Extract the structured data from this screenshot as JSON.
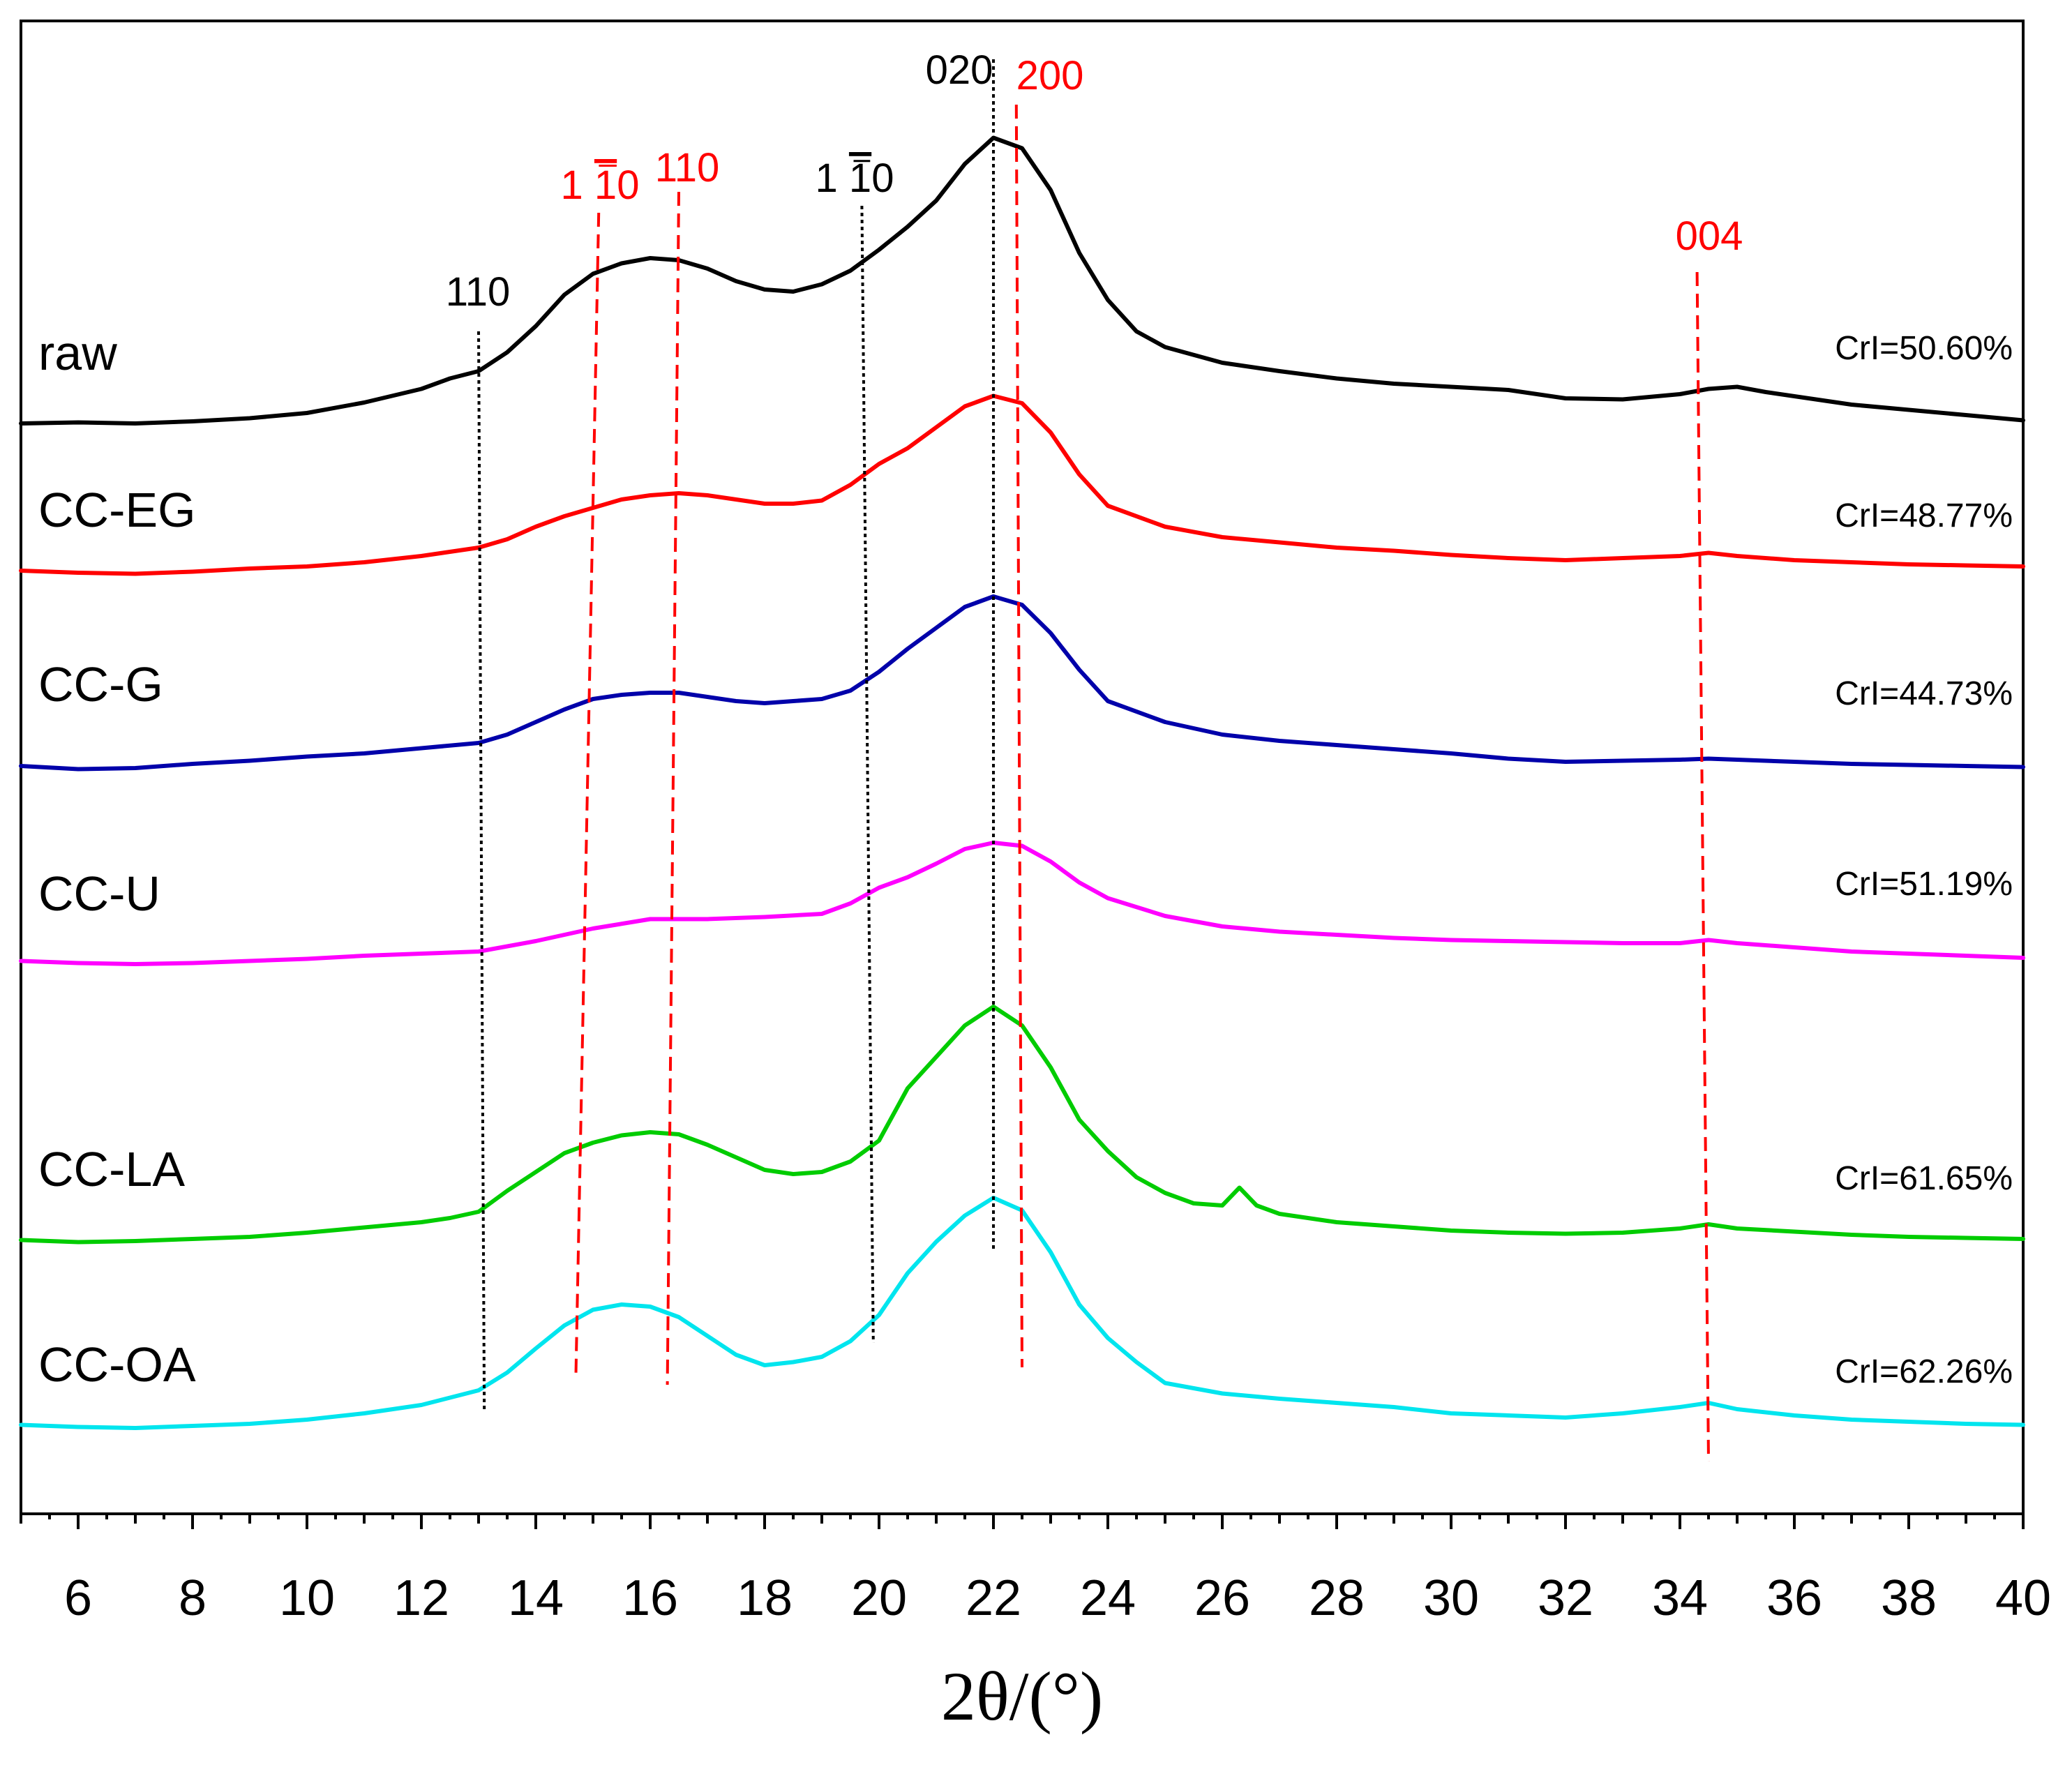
{
  "chart_data": {
    "type": "line",
    "title": "",
    "xlabel": "2θ/(°)",
    "ylabel": "",
    "xlim": [
      5,
      40
    ],
    "xticks": [
      6,
      8,
      10,
      12,
      14,
      16,
      18,
      20,
      22,
      24,
      26,
      28,
      30,
      32,
      34,
      36,
      38,
      40
    ],
    "y_axis_visible": false,
    "legend": "none",
    "series": [
      {
        "name": "raw",
        "color": "#000000",
        "cri": "CrI=50.60%",
        "points": [
          [
            5,
            12
          ],
          [
            6,
            13
          ],
          [
            7,
            12
          ],
          [
            8,
            14
          ],
          [
            9,
            17
          ],
          [
            10,
            22
          ],
          [
            11,
            32
          ],
          [
            12,
            45
          ],
          [
            12.5,
            55
          ],
          [
            13,
            62
          ],
          [
            13.5,
            80
          ],
          [
            14,
            105
          ],
          [
            14.5,
            135
          ],
          [
            15,
            155
          ],
          [
            15.5,
            165
          ],
          [
            16,
            170
          ],
          [
            16.5,
            168
          ],
          [
            17,
            160
          ],
          [
            17.5,
            148
          ],
          [
            18,
            140
          ],
          [
            18.5,
            138
          ],
          [
            19,
            145
          ],
          [
            19.5,
            158
          ],
          [
            20,
            178
          ],
          [
            20.5,
            200
          ],
          [
            21,
            225
          ],
          [
            21.5,
            260
          ],
          [
            22,
            285
          ],
          [
            22.5,
            275
          ],
          [
            23,
            235
          ],
          [
            23.5,
            175
          ],
          [
            24,
            130
          ],
          [
            24.5,
            100
          ],
          [
            25,
            85
          ],
          [
            26,
            70
          ],
          [
            27,
            62
          ],
          [
            28,
            55
          ],
          [
            29,
            50
          ],
          [
            30,
            47
          ],
          [
            31,
            44
          ],
          [
            32,
            36
          ],
          [
            33,
            35
          ],
          [
            34,
            40
          ],
          [
            34.5,
            45
          ],
          [
            35,
            47
          ],
          [
            35.5,
            42
          ],
          [
            36,
            38
          ],
          [
            37,
            30
          ],
          [
            38,
            25
          ],
          [
            39,
            20
          ],
          [
            40,
            15
          ]
        ]
      },
      {
        "name": "CC-EG",
        "color": "#ff0000",
        "cri": "CrI=48.77%",
        "points": [
          [
            5,
            8
          ],
          [
            6,
            6
          ],
          [
            7,
            5
          ],
          [
            8,
            7
          ],
          [
            9,
            10
          ],
          [
            10,
            12
          ],
          [
            11,
            16
          ],
          [
            12,
            22
          ],
          [
            13,
            30
          ],
          [
            13.5,
            38
          ],
          [
            14,
            50
          ],
          [
            14.5,
            60
          ],
          [
            15,
            68
          ],
          [
            15.5,
            76
          ],
          [
            16,
            80
          ],
          [
            16.5,
            82
          ],
          [
            17,
            80
          ],
          [
            17.5,
            76
          ],
          [
            18,
            72
          ],
          [
            18.5,
            72
          ],
          [
            19,
            75
          ],
          [
            19.5,
            90
          ],
          [
            20,
            110
          ],
          [
            20.5,
            125
          ],
          [
            21,
            145
          ],
          [
            21.5,
            165
          ],
          [
            22,
            175
          ],
          [
            22.5,
            168
          ],
          [
            23,
            140
          ],
          [
            23.5,
            100
          ],
          [
            24,
            70
          ],
          [
            25,
            50
          ],
          [
            26,
            40
          ],
          [
            27,
            35
          ],
          [
            28,
            30
          ],
          [
            29,
            27
          ],
          [
            30,
            23
          ],
          [
            31,
            20
          ],
          [
            32,
            18
          ],
          [
            33,
            20
          ],
          [
            34,
            22
          ],
          [
            34.5,
            25
          ],
          [
            35,
            22
          ],
          [
            36,
            18
          ],
          [
            37,
            16
          ],
          [
            38,
            14
          ],
          [
            39,
            13
          ],
          [
            40,
            12
          ]
        ]
      },
      {
        "name": "CC-G",
        "color": "#0000aa",
        "cri": "CrI=44.73%",
        "points": [
          [
            5,
            8
          ],
          [
            6,
            5
          ],
          [
            7,
            6
          ],
          [
            8,
            10
          ],
          [
            9,
            13
          ],
          [
            10,
            17
          ],
          [
            11,
            20
          ],
          [
            12,
            25
          ],
          [
            13,
            30
          ],
          [
            13.5,
            38
          ],
          [
            14,
            50
          ],
          [
            14.5,
            62
          ],
          [
            15,
            72
          ],
          [
            15.5,
            76
          ],
          [
            16,
            78
          ],
          [
            16.5,
            78
          ],
          [
            17,
            74
          ],
          [
            17.5,
            70
          ],
          [
            18,
            68
          ],
          [
            18.5,
            70
          ],
          [
            19,
            72
          ],
          [
            19.5,
            80
          ],
          [
            20,
            98
          ],
          [
            20.5,
            120
          ],
          [
            21,
            140
          ],
          [
            21.5,
            160
          ],
          [
            22,
            170
          ],
          [
            22.5,
            162
          ],
          [
            23,
            135
          ],
          [
            23.5,
            100
          ],
          [
            24,
            70
          ],
          [
            25,
            50
          ],
          [
            26,
            38
          ],
          [
            27,
            32
          ],
          [
            28,
            28
          ],
          [
            29,
            24
          ],
          [
            30,
            20
          ],
          [
            31,
            15
          ],
          [
            32,
            12
          ],
          [
            33,
            13
          ],
          [
            34,
            14
          ],
          [
            34.5,
            15
          ],
          [
            35,
            14
          ],
          [
            36,
            12
          ],
          [
            37,
            10
          ],
          [
            38,
            9
          ],
          [
            39,
            8
          ],
          [
            40,
            7
          ]
        ]
      },
      {
        "name": "CC-U",
        "color": "#ff00ff",
        "cri": "CrI=51.19%",
        "points": [
          [
            5,
            5
          ],
          [
            6,
            3
          ],
          [
            7,
            2
          ],
          [
            8,
            3
          ],
          [
            9,
            5
          ],
          [
            10,
            7
          ],
          [
            11,
            10
          ],
          [
            12,
            12
          ],
          [
            13,
            14
          ],
          [
            14,
            24
          ],
          [
            15,
            36
          ],
          [
            16,
            45
          ],
          [
            17,
            45
          ],
          [
            18,
            47
          ],
          [
            19,
            50
          ],
          [
            19.5,
            60
          ],
          [
            20,
            75
          ],
          [
            20.5,
            85
          ],
          [
            21,
            98
          ],
          [
            21.5,
            112
          ],
          [
            22,
            118
          ],
          [
            22.5,
            115
          ],
          [
            23,
            100
          ],
          [
            23.5,
            80
          ],
          [
            24,
            65
          ],
          [
            25,
            48
          ],
          [
            26,
            38
          ],
          [
            27,
            33
          ],
          [
            28,
            30
          ],
          [
            29,
            27
          ],
          [
            30,
            25
          ],
          [
            31,
            24
          ],
          [
            32,
            23
          ],
          [
            33,
            22
          ],
          [
            34,
            22
          ],
          [
            34.5,
            25
          ],
          [
            35,
            22
          ],
          [
            36,
            18
          ],
          [
            37,
            14
          ],
          [
            38,
            12
          ],
          [
            39,
            10
          ],
          [
            40,
            8
          ]
        ]
      },
      {
        "name": "CC-LA",
        "color": "#00cc00",
        "cri": "CrI=61.65%",
        "points": [
          [
            5,
            5
          ],
          [
            6,
            3
          ],
          [
            7,
            4
          ],
          [
            8,
            6
          ],
          [
            9,
            8
          ],
          [
            10,
            12
          ],
          [
            11,
            17
          ],
          [
            12,
            22
          ],
          [
            12.5,
            26
          ],
          [
            13,
            32
          ],
          [
            13.5,
            52
          ],
          [
            14,
            70
          ],
          [
            14.5,
            88
          ],
          [
            15,
            98
          ],
          [
            15.5,
            105
          ],
          [
            16,
            108
          ],
          [
            16.5,
            106
          ],
          [
            17,
            96
          ],
          [
            17.5,
            84
          ],
          [
            18,
            72
          ],
          [
            18.5,
            68
          ],
          [
            19,
            70
          ],
          [
            19.5,
            80
          ],
          [
            20,
            100
          ],
          [
            20.5,
            150
          ],
          [
            21,
            180
          ],
          [
            21.5,
            210
          ],
          [
            22,
            228
          ],
          [
            22.5,
            210
          ],
          [
            23,
            170
          ],
          [
            23.5,
            120
          ],
          [
            24,
            90
          ],
          [
            24.5,
            65
          ],
          [
            25,
            50
          ],
          [
            25.5,
            40
          ],
          [
            26,
            38
          ],
          [
            26.3,
            55
          ],
          [
            26.6,
            38
          ],
          [
            27,
            30
          ],
          [
            28,
            22
          ],
          [
            29,
            18
          ],
          [
            30,
            14
          ],
          [
            31,
            12
          ],
          [
            32,
            11
          ],
          [
            33,
            12
          ],
          [
            34,
            16
          ],
          [
            34.5,
            20
          ],
          [
            35,
            16
          ],
          [
            36,
            13
          ],
          [
            37,
            10
          ],
          [
            38,
            8
          ],
          [
            39,
            7
          ],
          [
            40,
            6
          ]
        ]
      },
      {
        "name": "CC-OA",
        "color": "#00e5ee",
        "cri": "CrI=62.26%",
        "points": [
          [
            5,
            5
          ],
          [
            6,
            3
          ],
          [
            7,
            2
          ],
          [
            8,
            4
          ],
          [
            9,
            6
          ],
          [
            10,
            10
          ],
          [
            11,
            16
          ],
          [
            12,
            24
          ],
          [
            13,
            38
          ],
          [
            13.5,
            55
          ],
          [
            14,
            78
          ],
          [
            14.5,
            100
          ],
          [
            15,
            115
          ],
          [
            15.5,
            120
          ],
          [
            16,
            118
          ],
          [
            16.5,
            108
          ],
          [
            17,
            90
          ],
          [
            17.5,
            72
          ],
          [
            18,
            62
          ],
          [
            18.5,
            65
          ],
          [
            19,
            70
          ],
          [
            19.5,
            85
          ],
          [
            20,
            110
          ],
          [
            20.5,
            150
          ],
          [
            21,
            180
          ],
          [
            21.5,
            205
          ],
          [
            22,
            222
          ],
          [
            22.5,
            210
          ],
          [
            23,
            170
          ],
          [
            23.5,
            120
          ],
          [
            24,
            88
          ],
          [
            24.5,
            65
          ],
          [
            25,
            45
          ],
          [
            26,
            35
          ],
          [
            27,
            30
          ],
          [
            28,
            26
          ],
          [
            29,
            22
          ],
          [
            30,
            16
          ],
          [
            31,
            14
          ],
          [
            32,
            12
          ],
          [
            33,
            16
          ],
          [
            34,
            22
          ],
          [
            34.5,
            26
          ],
          [
            35,
            20
          ],
          [
            36,
            14
          ],
          [
            37,
            10
          ],
          [
            38,
            8
          ],
          [
            39,
            6
          ],
          [
            40,
            5
          ]
        ]
      }
    ],
    "peak_lines": [
      {
        "label": "110",
        "color": "#000000",
        "style": "dotted",
        "x_top": 13.0,
        "x_bottom": 13.1
      },
      {
        "label": "1 -10",
        "color": "#000000",
        "style": "dotted",
        "x_top": 19.7,
        "x_bottom": 19.9
      },
      {
        "label": "020",
        "color": "#000000",
        "style": "dotted",
        "x_top": 22.0,
        "x_bottom": 22.0
      },
      {
        "label": "1 -10",
        "color": "#ff0000",
        "style": "dashed",
        "x_top": 15.1,
        "x_bottom": 14.7
      },
      {
        "label": "110",
        "color": "#ff0000",
        "style": "dashed",
        "x_top": 16.5,
        "x_bottom": 16.3
      },
      {
        "label": "200",
        "color": "#ff0000",
        "style": "dashed",
        "x_top": 22.4,
        "x_bottom": 22.5
      },
      {
        "label": "004",
        "color": "#ff0000",
        "style": "dashed",
        "x_top": 34.3,
        "x_bottom": 34.5
      }
    ]
  }
}
